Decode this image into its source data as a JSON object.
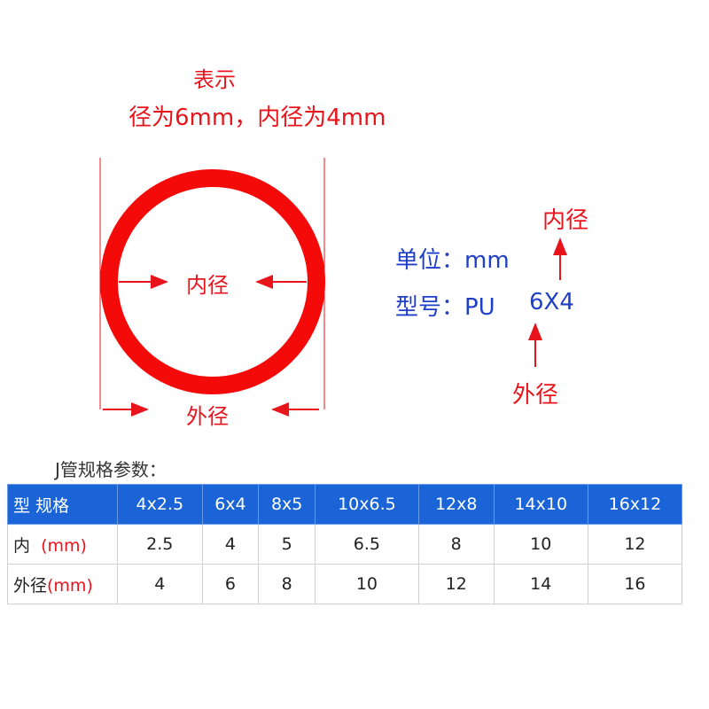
{
  "caption": {
    "line1": "表示",
    "line2": "径为6mm，内径为4mm"
  },
  "diagram": {
    "inner_label": "内径",
    "outer_label": "外径"
  },
  "spec": {
    "unit_label": "单位：mm",
    "model_label": "型号：PU",
    "model_value": "6X4",
    "inner_label": "内径",
    "outer_label": "外径"
  },
  "table": {
    "title": "J管规格参数：",
    "header_label": "型 规格",
    "sizes": [
      "4x2.5",
      "6x4",
      "8x5",
      "10x6.5",
      "12x8",
      "14x10",
      "16x12"
    ],
    "rows": [
      {
        "label": "内",
        "unit": "(mm)",
        "values": [
          "2.5",
          "4",
          "5",
          "6.5",
          "8",
          "10",
          "12"
        ]
      },
      {
        "label": "外径",
        "unit": "(mm)",
        "values": [
          "4",
          "6",
          "8",
          "10",
          "12",
          "14",
          "16"
        ]
      }
    ]
  },
  "colors": {
    "red": "#e8141c",
    "blue": "#1a64d8",
    "text_blue": "#1f3fc8"
  }
}
